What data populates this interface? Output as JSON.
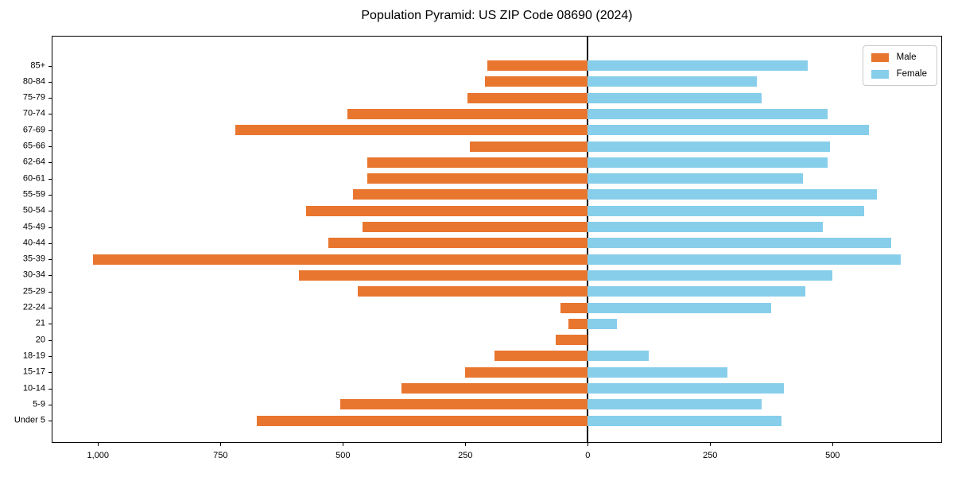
{
  "title": "Population Pyramid: US ZIP Code 08690 (2024)",
  "legend": {
    "male_label": "Male",
    "female_label": "Female"
  },
  "colors": {
    "male": "#e8762f",
    "female": "#87ceeb",
    "axis": "#000000",
    "legend_border": "#c9c9c9"
  },
  "chart_data": {
    "type": "bar",
    "subtype": "population-pyramid",
    "orientation": "horizontal",
    "title": "Population Pyramid: US ZIP Code 08690 (2024)",
    "categories_top_to_bottom": [
      "85+",
      "80-84",
      "75-79",
      "70-74",
      "67-69",
      "65-66",
      "62-64",
      "60-61",
      "55-59",
      "50-54",
      "45-49",
      "40-44",
      "35-39",
      "30-34",
      "25-29",
      "22-24",
      "21",
      "20",
      "18-19",
      "15-17",
      "10-14",
      "5-9",
      "Under 5"
    ],
    "series": [
      {
        "name": "Male",
        "side": "left",
        "color": "#e8762f",
        "values": [
          205,
          210,
          245,
          490,
          720,
          240,
          450,
          450,
          480,
          575,
          460,
          530,
          1010,
          590,
          470,
          55,
          40,
          65,
          190,
          250,
          380,
          505,
          675
        ]
      },
      {
        "name": "Female",
        "side": "right",
        "color": "#87ceeb",
        "values": [
          450,
          345,
          355,
          490,
          575,
          495,
          490,
          440,
          590,
          565,
          480,
          620,
          640,
          500,
          445,
          375,
          60,
          0,
          125,
          285,
          400,
          355,
          395
        ]
      }
    ],
    "xlim": [
      -1093,
      722
    ],
    "x_ticks": [
      {
        "value": -1000,
        "label": "1,000"
      },
      {
        "value": -750,
        "label": "750"
      },
      {
        "value": -500,
        "label": "500"
      },
      {
        "value": -250,
        "label": "250"
      },
      {
        "value": 0,
        "label": "0"
      },
      {
        "value": 250,
        "label": "250"
      },
      {
        "value": 500,
        "label": "500"
      }
    ],
    "grid": false,
    "zero_line": true,
    "legend_position": "upper-right",
    "legend_entries": [
      "Male",
      "Female"
    ]
  }
}
